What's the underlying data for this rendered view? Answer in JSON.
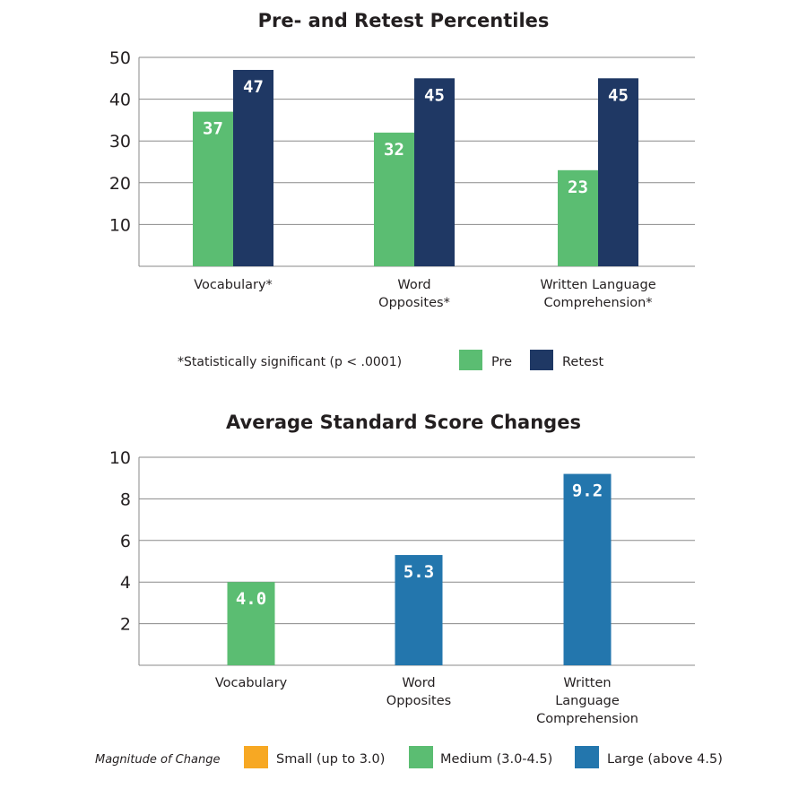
{
  "chart_data": [
    {
      "type": "bar",
      "title": "Pre- and Retest Percentiles",
      "categories": [
        [
          "Vocabulary*"
        ],
        [
          "Word",
          "Opposites*"
        ],
        [
          "Written Language",
          "Comprehension*"
        ]
      ],
      "series": [
        {
          "name": "Pre",
          "color": "#5bbd72",
          "values": [
            37,
            32,
            23
          ]
        },
        {
          "name": "Retest",
          "color": "#1f3864",
          "values": [
            47,
            45,
            45
          ]
        }
      ],
      "value_labels": [
        [
          "37",
          "32",
          "23"
        ],
        [
          "47",
          "45",
          "45"
        ]
      ],
      "ylim": [
        0,
        50
      ],
      "yticks": [
        10,
        20,
        30,
        40,
        50
      ],
      "grid": true,
      "footnote": "*Statistically significant (p < .0001)",
      "legend": [
        "Pre",
        "Retest"
      ]
    },
    {
      "type": "bar",
      "title": "Average Standard Score Changes",
      "categories": [
        [
          "Vocabulary"
        ],
        [
          "Word",
          "Opposites"
        ],
        [
          "Written",
          "Language",
          "Comprehension"
        ]
      ],
      "values": [
        4.0,
        5.3,
        9.2
      ],
      "value_labels": [
        "4.0",
        "5.3",
        "9.2"
      ],
      "bar_colors": [
        "#5bbd72",
        "#2376ad",
        "#2376ad"
      ],
      "ylim": [
        0,
        10
      ],
      "yticks": [
        2,
        4,
        6,
        8,
        10
      ],
      "grid": true,
      "legend_title": "Magnitude of Change",
      "legend": [
        {
          "label": "Small (up to 3.0)",
          "color": "#f7a823"
        },
        {
          "label": "Medium (3.0-4.5)",
          "color": "#5bbd72"
        },
        {
          "label": "Large (above 4.5)",
          "color": "#2376ad"
        }
      ]
    }
  ]
}
